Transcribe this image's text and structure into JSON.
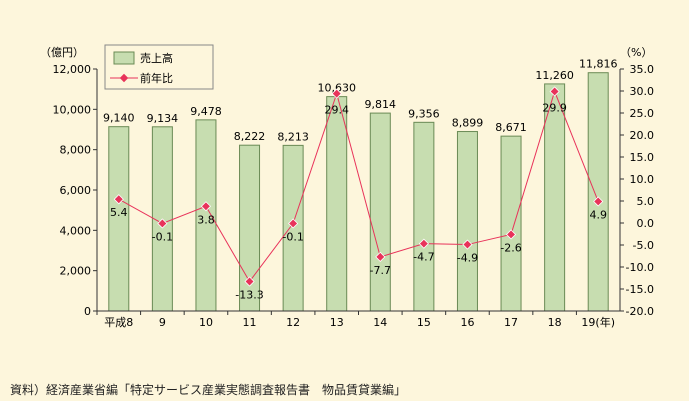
{
  "chart_data": {
    "type": "bar",
    "categories": [
      "平成8",
      "9",
      "10",
      "11",
      "12",
      "13",
      "14",
      "15",
      "16",
      "17",
      "18",
      "19(年)"
    ],
    "series": [
      {
        "name": "売上高",
        "type": "bar",
        "axis": "left",
        "color": "#c7ddb0",
        "values": [
          9140,
          9134,
          9478,
          8222,
          8213,
          10630,
          9814,
          9356,
          8899,
          8671,
          11260,
          11816
        ],
        "labels": [
          "9,140",
          "9,134",
          "9,478",
          "8,222",
          "8,213",
          "10,630",
          "9,814",
          "9,356",
          "8,899",
          "8,671",
          "11,260",
          "11,816"
        ]
      },
      {
        "name": "前年比",
        "type": "line",
        "axis": "right",
        "color": "#e8335a",
        "values": [
          5.4,
          -0.1,
          3.8,
          -13.3,
          -0.1,
          29.4,
          -7.7,
          -4.7,
          -4.9,
          -2.6,
          29.9,
          4.9
        ],
        "labels": [
          "5.4",
          "-0.1",
          "3.8",
          "-13.3",
          "-0.1",
          "29.4",
          "-7.7",
          "-4.7",
          "-4.9",
          "-2.6",
          "29.9",
          "4.9"
        ]
      }
    ],
    "y_left": {
      "unit_label": "（億円）",
      "range": [
        0,
        12000
      ],
      "ticks": [
        0,
        2000,
        4000,
        6000,
        8000,
        10000,
        12000
      ],
      "tick_labels": [
        "0",
        "2,000",
        "4,000",
        "6,000",
        "8,000",
        "10,000",
        "12,000"
      ]
    },
    "y_right": {
      "unit_label": "（%）",
      "range": [
        -20,
        35
      ],
      "ticks": [
        -20,
        -15,
        -10,
        -5,
        0,
        5,
        10,
        15,
        20,
        25,
        30,
        35
      ],
      "tick_labels": [
        "-20.0",
        "-15.0",
        "-10.0",
        "-5.0",
        "0.0",
        "5.0",
        "10.0",
        "15.0",
        "20.0",
        "25.0",
        "30.0",
        "35.0"
      ]
    },
    "grid": false,
    "legend": "top-left"
  },
  "source_note": "資料）経済産業省編「特定サービス産業実態調査報告書　物品賃貸業編」"
}
